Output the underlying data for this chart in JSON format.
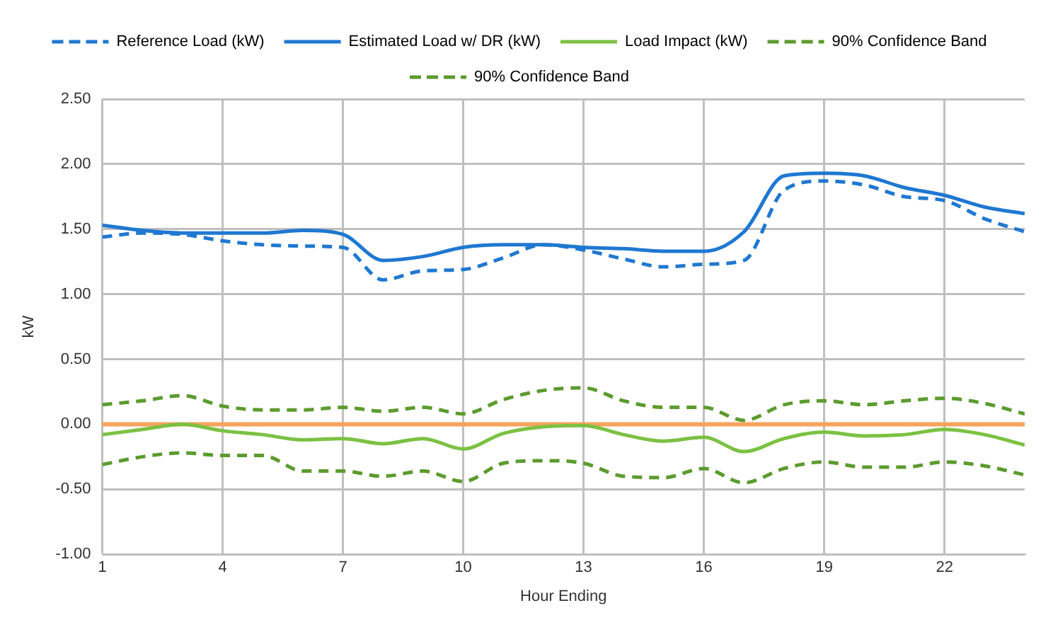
{
  "chart_data": {
    "type": "line",
    "xlabel": "Hour Ending",
    "ylabel": "kW",
    "x": [
      1,
      2,
      3,
      4,
      5,
      6,
      7,
      8,
      9,
      10,
      11,
      12,
      13,
      14,
      15,
      16,
      17,
      18,
      19,
      20,
      21,
      22,
      23,
      24
    ],
    "xlim": [
      1,
      24
    ],
    "xticks": [
      1,
      4,
      7,
      10,
      13,
      16,
      19,
      22
    ],
    "ylim": [
      -1,
      2.5
    ],
    "yticks": [
      {
        "value": -1,
        "label": "-1.00"
      },
      {
        "value": -0.5,
        "label": "-0.50"
      },
      {
        "value": 0,
        "label": "0.00"
      },
      {
        "value": 0.5,
        "label": "0.50"
      },
      {
        "value": 1,
        "label": "1.00"
      },
      {
        "value": 1.5,
        "label": "1.50"
      },
      {
        "value": 2,
        "label": "2.00"
      },
      {
        "value": 2.5,
        "label": "2.50"
      }
    ],
    "grid": true,
    "legend": "top",
    "marker": "none",
    "series": [
      {
        "name": "Reference Load (kW)",
        "color": "#1f78d1",
        "line_style": "dashed",
        "values": [
          1.44,
          1.47,
          1.46,
          1.41,
          1.38,
          1.37,
          1.36,
          1.11,
          1.18,
          1.19,
          1.28,
          1.38,
          1.34,
          1.27,
          1.21,
          1.23,
          1.26,
          1.8,
          1.87,
          1.84,
          1.75,
          1.72,
          1.58,
          1.48
        ]
      },
      {
        "name": "Estimated Load w/ DR (kW)",
        "color": "#1f78d1",
        "line_style": "solid",
        "values": [
          1.53,
          1.49,
          1.47,
          1.47,
          1.47,
          1.49,
          1.46,
          1.26,
          1.29,
          1.36,
          1.38,
          1.38,
          1.36,
          1.35,
          1.33,
          1.33,
          1.48,
          1.91,
          1.93,
          1.91,
          1.82,
          1.76,
          1.67,
          1.62
        ]
      },
      {
        "name": "Load Impact (kW)",
        "color": "#7cc142",
        "line_style": "solid",
        "values": [
          -0.08,
          -0.04,
          0,
          -0.05,
          -0.08,
          -0.12,
          -0.11,
          -0.15,
          -0.11,
          -0.19,
          -0.07,
          -0.02,
          -0.01,
          -0.08,
          -0.13,
          -0.1,
          -0.21,
          -0.11,
          -0.06,
          -0.09,
          -0.08,
          -0.04,
          -0.08,
          -0.16
        ]
      },
      {
        "name": "90% Confidence Band",
        "color": "#5c9b2e",
        "line_style": "dashed",
        "values": [
          0.15,
          0.18,
          0.22,
          0.14,
          0.11,
          0.11,
          0.13,
          0.1,
          0.13,
          0.08,
          0.19,
          0.26,
          0.28,
          0.18,
          0.13,
          0.13,
          0.03,
          0.15,
          0.18,
          0.15,
          0.18,
          0.2,
          0.16,
          0.08
        ]
      },
      {
        "name": "90% Confidence Band",
        "color": "#5c9b2e",
        "line_style": "dashed",
        "values": [
          -0.31,
          -0.25,
          -0.22,
          -0.24,
          -0.24,
          -0.36,
          -0.36,
          -0.4,
          -0.36,
          -0.44,
          -0.3,
          -0.28,
          -0.3,
          -0.4,
          -0.41,
          -0.34,
          -0.45,
          -0.34,
          -0.29,
          -0.33,
          -0.33,
          -0.29,
          -0.32,
          -0.39
        ]
      }
    ],
    "ref_lines": [
      {
        "axis": "y",
        "value": 0,
        "color": "#f7a35c"
      }
    ]
  }
}
